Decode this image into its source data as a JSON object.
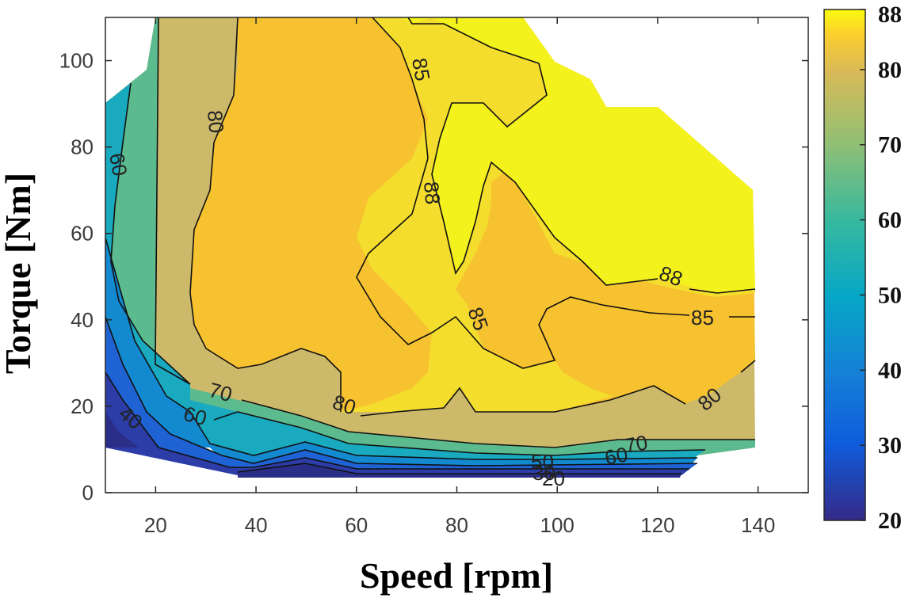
{
  "chart_data": {
    "type": "contour",
    "title": "",
    "xlabel": "Speed [rpm]",
    "ylabel": "Torque [Nm]",
    "xlim": [
      10,
      150
    ],
    "ylim": [
      0,
      110
    ],
    "xticks": [
      "20",
      "40",
      "60",
      "80",
      "100",
      "120",
      "140"
    ],
    "yticks": [
      "0",
      "20",
      "40",
      "60",
      "80",
      "100"
    ],
    "grid": false,
    "colorbar": {
      "ticks": [
        "20",
        "30",
        "40",
        "50",
        "60",
        "70",
        "80",
        "88"
      ],
      "range": [
        20,
        88
      ],
      "colormap": "parula",
      "placement": "right"
    },
    "contour_levels": [
      20,
      30,
      40,
      50,
      60,
      70,
      80,
      85,
      88
    ],
    "level_colors": {
      "below20": "#2a2e86",
      "20-30": "#2c3da8",
      "30-40": "#1f62d4",
      "40-50": "#1389d0",
      "50-60": "#19aac0",
      "60-70": "#5cbb8e",
      "70-80": "#cdb96a",
      "80-85": "#f7c22f",
      "85-88": "#f4dd2d",
      "above88": "#f4f21c"
    },
    "contour_labels": [
      "85",
      "80",
      "88",
      "60",
      "88",
      "85",
      "85",
      "70",
      "60",
      "40",
      "80",
      "80",
      "60",
      "70",
      "50",
      "30",
      "20"
    ]
  }
}
